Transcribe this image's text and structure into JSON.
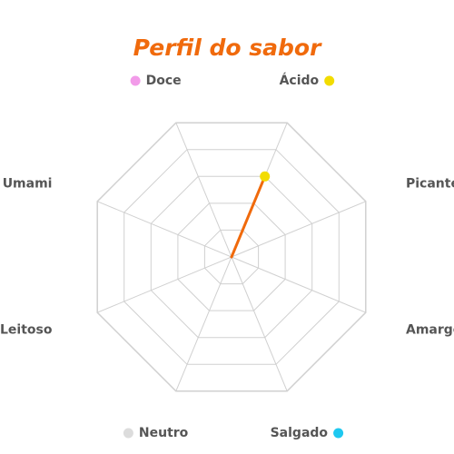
{
  "chart_data": {
    "type": "radar",
    "title": "Perfil do sabor",
    "axes": [
      {
        "name": "Ácido",
        "color": "#f2dc00"
      },
      {
        "name": "Picante",
        "color": "#f0401a"
      },
      {
        "name": "Amargo",
        "color": "#24c22f"
      },
      {
        "name": "Salgado",
        "color": "#1ec8f0"
      },
      {
        "name": "Neutro",
        "color": "#dcdcdc"
      },
      {
        "name": "Leitoso",
        "color": "#f6f7c2"
      },
      {
        "name": "Umami",
        "color": "#a84ff0"
      },
      {
        "name": "Doce",
        "color": "#f29be9"
      }
    ],
    "range": [
      0,
      5
    ],
    "grid_levels": 5,
    "series": [
      {
        "color": "#f06a0c",
        "values": [
          3,
          0,
          0,
          0,
          0,
          0,
          0,
          0
        ]
      }
    ]
  }
}
